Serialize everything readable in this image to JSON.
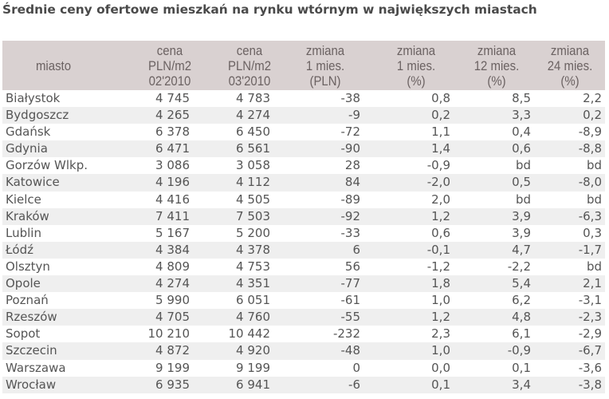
{
  "title": "Średnie ceny ofertowe mieszkań na rynku wtórnym w największych miastach",
  "colors": {
    "header_bg": "#d9d1d1",
    "header_text": "#6b6262",
    "row_alt_bg": "#efefef",
    "body_text": "#555555",
    "title_text": "#4a4a4a"
  },
  "headers": [
    "miasto",
    "cena\nPLN/m2\n02'2010",
    "cena\nPLN/m2\n03'2010",
    "zmiana\n1 mies.\n(PLN)",
    "zmiana\n1 mies.\n(%)",
    "zmiana\n12 mies.\n(%)",
    "zmiana\n24 mies.\n(%)"
  ],
  "rows": [
    [
      "Białystok",
      "4 745",
      "4 783",
      "-38",
      "0,8",
      "8,5",
      "2,2"
    ],
    [
      "Bydgoszcz",
      "4 265",
      "4 274",
      "-9",
      "0,2",
      "3,3",
      "0,2"
    ],
    [
      "Gdańsk",
      "6 378",
      "6 450",
      "-72",
      "1,1",
      "0,4",
      "-8,9"
    ],
    [
      "Gdynia",
      "6 471",
      "6 561",
      "-90",
      "1,4",
      "0,6",
      "-8,8"
    ],
    [
      "Gorzów Wlkp.",
      "3 086",
      "3 058",
      "28",
      "-0,9",
      "bd",
      "bd"
    ],
    [
      "Katowice",
      "4 196",
      "4 112",
      "84",
      "-2,0",
      "0,5",
      "-8,0"
    ],
    [
      "Kielce",
      "4 416",
      "4 505",
      "-89",
      "2,0",
      "bd",
      "bd"
    ],
    [
      "Kraków",
      "7 411",
      "7 503",
      "-92",
      "1,2",
      "3,9",
      "-6,3"
    ],
    [
      "Lublin",
      "5 167",
      "5 200",
      "-33",
      "0,6",
      "3,9",
      "0,3"
    ],
    [
      "Łódź",
      "4 384",
      "4 378",
      "6",
      "-0,1",
      "4,7",
      "-1,7"
    ],
    [
      "Olsztyn",
      "4 809",
      "4 753",
      "56",
      "-1,2",
      "-2,2",
      "bd"
    ],
    [
      "Opole",
      "4 274",
      "4 351",
      "-77",
      "1,8",
      "5,4",
      "2,1"
    ],
    [
      "Poznań",
      "5 990",
      "6 051",
      "-61",
      "1,0",
      "6,2",
      "-3,1"
    ],
    [
      "Rzeszów",
      "4 705",
      "4 760",
      "-55",
      "1,2",
      "4,8",
      "-2,3"
    ],
    [
      "Sopot",
      "10 210",
      "10 442",
      "-232",
      "2,3",
      "6,1",
      "-2,9"
    ],
    [
      "Szczecin",
      "4 872",
      "4 920",
      "-48",
      "1,0",
      "-0,9",
      "-6,7"
    ],
    [
      "Warszawa",
      "9 199",
      "9 199",
      "0",
      "0,0",
      "0,1",
      "-3,6"
    ],
    [
      "Wrocław",
      "6 935",
      "6 941",
      "-6",
      "0,1",
      "3,4",
      "-3,8"
    ]
  ]
}
